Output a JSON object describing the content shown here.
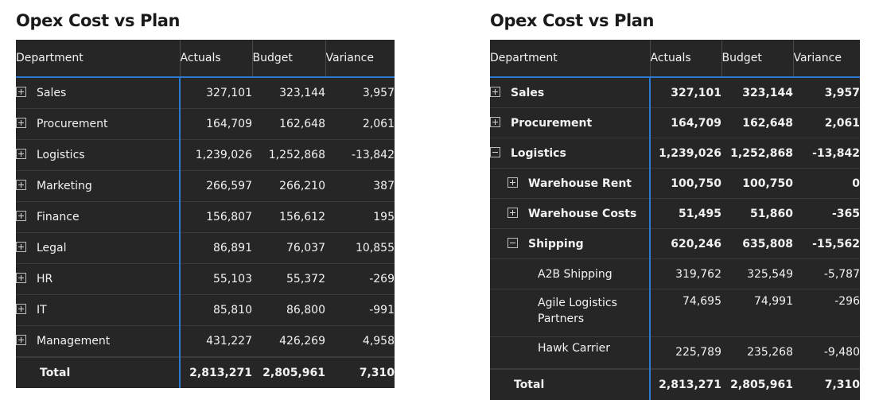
{
  "left": {
    "title": "Opex Cost vs Plan",
    "columns": [
      "Department",
      "Actuals",
      "Budget",
      "Variance"
    ],
    "rows": [
      {
        "label": "Sales",
        "actuals": "327,101",
        "budget": "323,144",
        "variance": "3,957"
      },
      {
        "label": "Procurement",
        "actuals": "164,709",
        "budget": "162,648",
        "variance": "2,061"
      },
      {
        "label": "Logistics",
        "actuals": "1,239,026",
        "budget": "1,252,868",
        "variance": "-13,842"
      },
      {
        "label": "Marketing",
        "actuals": "266,597",
        "budget": "266,210",
        "variance": "387"
      },
      {
        "label": "Finance",
        "actuals": "156,807",
        "budget": "156,612",
        "variance": "195"
      },
      {
        "label": "Legal",
        "actuals": "86,891",
        "budget": "76,037",
        "variance": "10,855"
      },
      {
        "label": "HR",
        "actuals": "55,103",
        "budget": "55,372",
        "variance": "-269"
      },
      {
        "label": "IT",
        "actuals": "85,810",
        "budget": "86,800",
        "variance": "-991"
      },
      {
        "label": "Management",
        "actuals": "431,227",
        "budget": "426,269",
        "variance": "4,958"
      }
    ],
    "total": {
      "label": "Total",
      "actuals": "2,813,271",
      "budget": "2,805,961",
      "variance": "7,310"
    }
  },
  "right": {
    "title": "Opex Cost vs Plan",
    "columns": [
      "Department",
      "Actuals",
      "Budget",
      "Variance"
    ],
    "rows": [
      {
        "label": "Sales",
        "actuals": "327,101",
        "budget": "323,144",
        "variance": "3,957"
      },
      {
        "label": "Procurement",
        "actuals": "164,709",
        "budget": "162,648",
        "variance": "2,061"
      },
      {
        "label": "Logistics",
        "actuals": "1,239,026",
        "budget": "1,252,868",
        "variance": "-13,842"
      },
      {
        "label": "Warehouse Rent",
        "actuals": "100,750",
        "budget": "100,750",
        "variance": "0"
      },
      {
        "label": "Warehouse Costs",
        "actuals": "51,495",
        "budget": "51,860",
        "variance": "-365"
      },
      {
        "label": "Shipping",
        "actuals": "620,246",
        "budget": "635,808",
        "variance": "-15,562"
      },
      {
        "label": "A2B Shipping",
        "actuals": "319,762",
        "budget": "325,549",
        "variance": "-5,787"
      },
      {
        "label": "Agile Logistics Partners",
        "actuals": "74,695",
        "budget": "74,991",
        "variance": "-296"
      },
      {
        "label": "Hawk Carrier",
        "actuals": "225,789",
        "budget": "235,268",
        "variance": "-9,480"
      }
    ],
    "total": {
      "label": "Total",
      "actuals": "2,813,271",
      "budget": "2,805,961",
      "variance": "7,310"
    }
  }
}
